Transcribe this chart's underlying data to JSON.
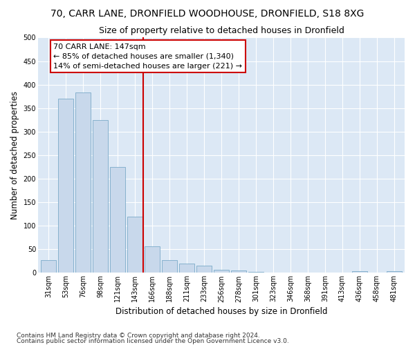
{
  "title": "70, CARR LANE, DRONFIELD WOODHOUSE, DRONFIELD, S18 8XG",
  "subtitle": "Size of property relative to detached houses in Dronfield",
  "xlabel": "Distribution of detached houses by size in Dronfield",
  "ylabel": "Number of detached properties",
  "footnote1": "Contains HM Land Registry data © Crown copyright and database right 2024.",
  "footnote2": "Contains public sector information licensed under the Open Government Licence v3.0.",
  "bar_labels": [
    "31sqm",
    "53sqm",
    "76sqm",
    "98sqm",
    "121sqm",
    "143sqm",
    "166sqm",
    "188sqm",
    "211sqm",
    "233sqm",
    "256sqm",
    "278sqm",
    "301sqm",
    "323sqm",
    "346sqm",
    "368sqm",
    "391sqm",
    "413sqm",
    "436sqm",
    "458sqm",
    "481sqm"
  ],
  "bar_values": [
    27,
    370,
    383,
    325,
    225,
    120,
    57,
    27,
    20,
    15,
    7,
    5,
    2,
    1,
    1,
    0,
    0,
    0,
    3,
    0,
    3
  ],
  "bar_color": "#c8d8eb",
  "bar_edge_color": "#7aaac8",
  "vline_x": 5.5,
  "vline_color": "#cc0000",
  "vline_label": "70 CARR LANE: 147sqm",
  "annotation_line1": "← 85% of detached houses are smaller (1,340)",
  "annotation_line2": "14% of semi-detached houses are larger (221) →",
  "annotation_box_color": "#cc0000",
  "annotation_bg": "#ffffff",
  "ylim": [
    0,
    500
  ],
  "yticks": [
    0,
    50,
    100,
    150,
    200,
    250,
    300,
    350,
    400,
    450,
    500
  ],
  "fig_bg_color": "#ffffff",
  "plot_bg_color": "#dce8f5",
  "grid_color": "#ffffff",
  "title_fontsize": 10,
  "subtitle_fontsize": 9,
  "axis_label_fontsize": 8.5,
  "tick_fontsize": 7,
  "footnote_fontsize": 6.5,
  "annotation_fontsize": 8
}
